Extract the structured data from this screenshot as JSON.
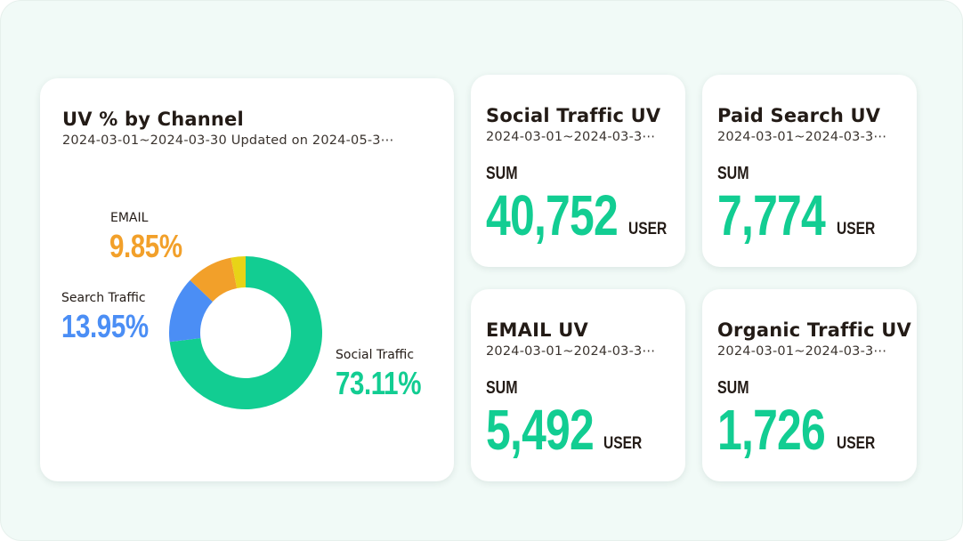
{
  "donut_card": {
    "title": "UV % by Channel",
    "subtitle": "2024-03-01~2024-03-30 Updated on 2024-05-3⋯"
  },
  "kpis": [
    {
      "key": "social",
      "title": "Social Traffic UV",
      "subtitle": "2024-03-01~2024-03-3⋯",
      "agg_label": "SUM",
      "value": "40,752",
      "unit": "USER"
    },
    {
      "key": "paid",
      "title": "Paid Search UV",
      "subtitle": "2024-03-01~2024-03-3⋯",
      "agg_label": "SUM",
      "value": "7,774",
      "unit": "USER"
    },
    {
      "key": "email",
      "title": "EMAIL UV",
      "subtitle": "2024-03-01~2024-03-3⋯",
      "agg_label": "SUM",
      "value": "5,492",
      "unit": "USER"
    },
    {
      "key": "organic",
      "title": "Organic Traffic UV",
      "subtitle": "2024-03-01~2024-03-3⋯",
      "agg_label": "SUM",
      "value": "1,726",
      "unit": "USER"
    }
  ],
  "chart_data": {
    "type": "pie",
    "title": "UV % by Channel",
    "subtitle": "2024-03-01~2024-03-30 Updated on 2024-05-3⋯",
    "donut": true,
    "slices": [
      {
        "name": "Social Traffic",
        "value": 73.11,
        "label": "73.11%",
        "color": "#12cd92"
      },
      {
        "name": "Search Traffic",
        "value": 13.95,
        "label": "13.95%",
        "color": "#4b8ef5"
      },
      {
        "name": "EMAIL",
        "value": 9.85,
        "label": "9.85%",
        "color": "#f2a02a"
      },
      {
        "name": "Organic Traffic",
        "value": 3.09,
        "label": "",
        "color": "#e8d317"
      }
    ]
  }
}
